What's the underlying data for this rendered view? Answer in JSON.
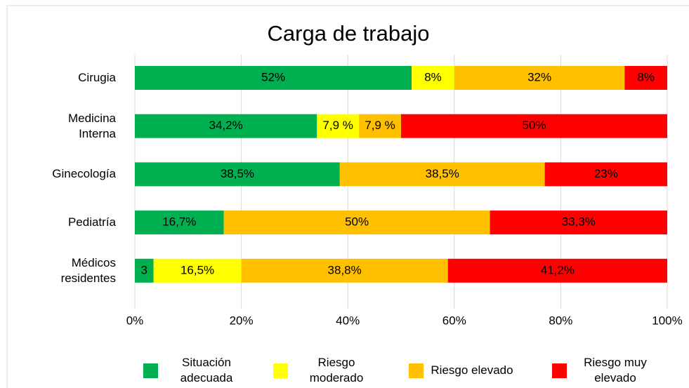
{
  "chart_data": {
    "type": "stacked-barh",
    "title": "Carga de trabajo",
    "categories": [
      "Cirugia",
      "Medicina Interna",
      "Ginecología",
      "Pediatría",
      "Médicos residentes"
    ],
    "series": [
      {
        "name": "Situación adecuada",
        "color": "#00b050",
        "values": [
          52,
          34.2,
          38.5,
          16.7,
          3.5
        ],
        "value_labels": [
          "52%",
          "34,2%",
          "38,5%",
          "16,7%",
          "3"
        ]
      },
      {
        "name": "Riesgo moderado",
        "color": "#ffff00",
        "values": [
          8,
          7.9,
          null,
          null,
          16.5
        ],
        "value_labels": [
          "8%",
          "7,9 %",
          null,
          null,
          "16,5%"
        ]
      },
      {
        "name": "Riesgo elevado",
        "color": "#ffc000",
        "values": [
          32,
          7.9,
          38.5,
          50,
          38.8
        ],
        "value_labels": [
          "32%",
          "7,9 %",
          "38,5%",
          "50%",
          "38,8%"
        ]
      },
      {
        "name": "Riesgo muy elevado",
        "color": "#ff0000",
        "values": [
          8,
          50,
          23,
          33.3,
          41.2
        ],
        "value_labels": [
          "8%",
          "50%",
          "23%",
          "33,3%",
          "41,2%"
        ]
      }
    ],
    "xlim": [
      0,
      100
    ],
    "xticks": [
      {
        "value": 0,
        "label": "0%"
      },
      {
        "value": 20,
        "label": "20%"
      },
      {
        "value": 40,
        "label": "40%"
      },
      {
        "value": 60,
        "label": "60%"
      },
      {
        "value": 80,
        "label": "80%"
      },
      {
        "value": 100,
        "label": "100%"
      }
    ],
    "grid": true
  }
}
